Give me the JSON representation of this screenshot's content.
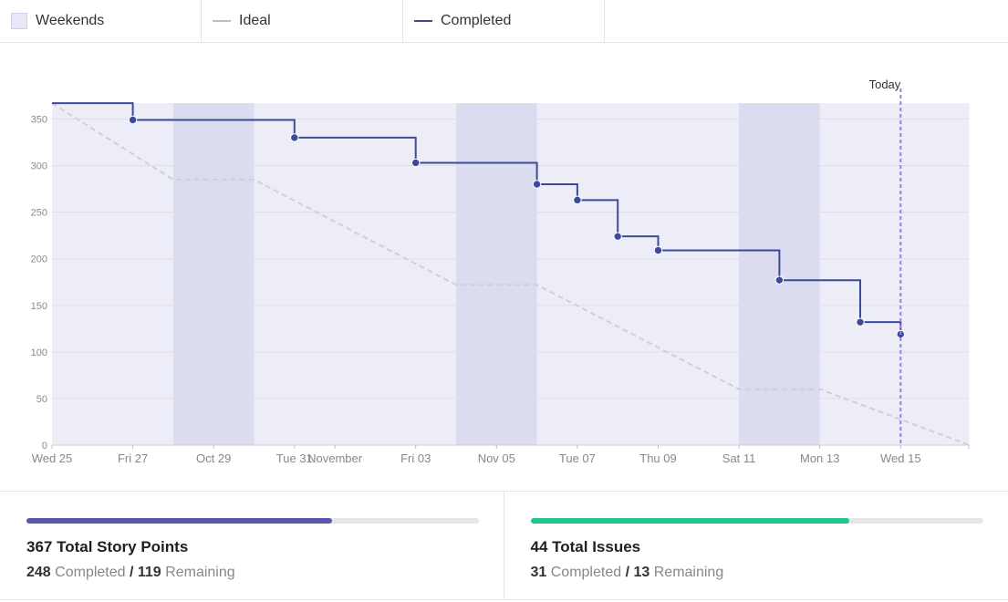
{
  "legend": {
    "items": [
      {
        "label": "Weekends",
        "icon": "weekend-swatch-icon",
        "color": "#e8e8f6"
      },
      {
        "label": "Ideal",
        "icon": "ideal-line-icon",
        "color": "#bdbdbd"
      },
      {
        "label": "Completed",
        "icon": "completed-line-icon",
        "color": "#3d4a9a"
      }
    ]
  },
  "chart_data": {
    "type": "line",
    "y_ticks": [
      0,
      50,
      100,
      150,
      200,
      250,
      300,
      350
    ],
    "ylim": [
      0,
      367
    ],
    "x_ticks": [
      "Wed 25",
      "Fri 27",
      "Oct 29",
      "Tue 31",
      "November",
      "Fri 03",
      "Nov 05",
      "Tue 07",
      "Thu 09",
      "Sat 11",
      "Mon 13",
      "Wed 15"
    ],
    "x_tick_days": [
      0,
      2,
      4,
      6,
      7,
      9,
      11,
      13,
      15,
      17,
      19,
      21
    ],
    "today_label": "Today",
    "today_day": 21,
    "weekends": [
      [
        3,
        5
      ],
      [
        10,
        12
      ],
      [
        17,
        19
      ]
    ],
    "series": [
      {
        "name": "Completed",
        "style": "step",
        "color": "#3d4a9a",
        "start": [
          0,
          367
        ],
        "points": [
          [
            2,
            349
          ],
          [
            6,
            330
          ],
          [
            9,
            303
          ],
          [
            12,
            280
          ],
          [
            13,
            263
          ],
          [
            14,
            224
          ],
          [
            15,
            209
          ],
          [
            18,
            177
          ],
          [
            20,
            132
          ],
          [
            21,
            119
          ]
        ]
      },
      {
        "name": "Ideal",
        "style": "dashed",
        "color": "#cfcfd6",
        "points": [
          [
            0,
            367
          ],
          [
            3,
            285
          ],
          [
            5,
            285
          ],
          [
            10,
            172
          ],
          [
            12,
            172
          ],
          [
            17,
            60
          ],
          [
            19,
            60
          ],
          [
            22.7,
            0
          ]
        ]
      }
    ],
    "grid": true
  },
  "stats": {
    "story_points": {
      "title": "367 Total Story Points",
      "completed_value": "248",
      "completed_label": "Completed",
      "separator": "/",
      "remaining_value": "119",
      "remaining_label": "Remaining",
      "progress_fraction": 0.676,
      "color": "#5b57b0"
    },
    "issues": {
      "title": "44 Total Issues",
      "completed_value": "31",
      "completed_label": "Completed",
      "separator": "/",
      "remaining_value": "13",
      "remaining_label": "Remaining",
      "progress_fraction": 0.705,
      "color": "#1ec68f"
    }
  }
}
